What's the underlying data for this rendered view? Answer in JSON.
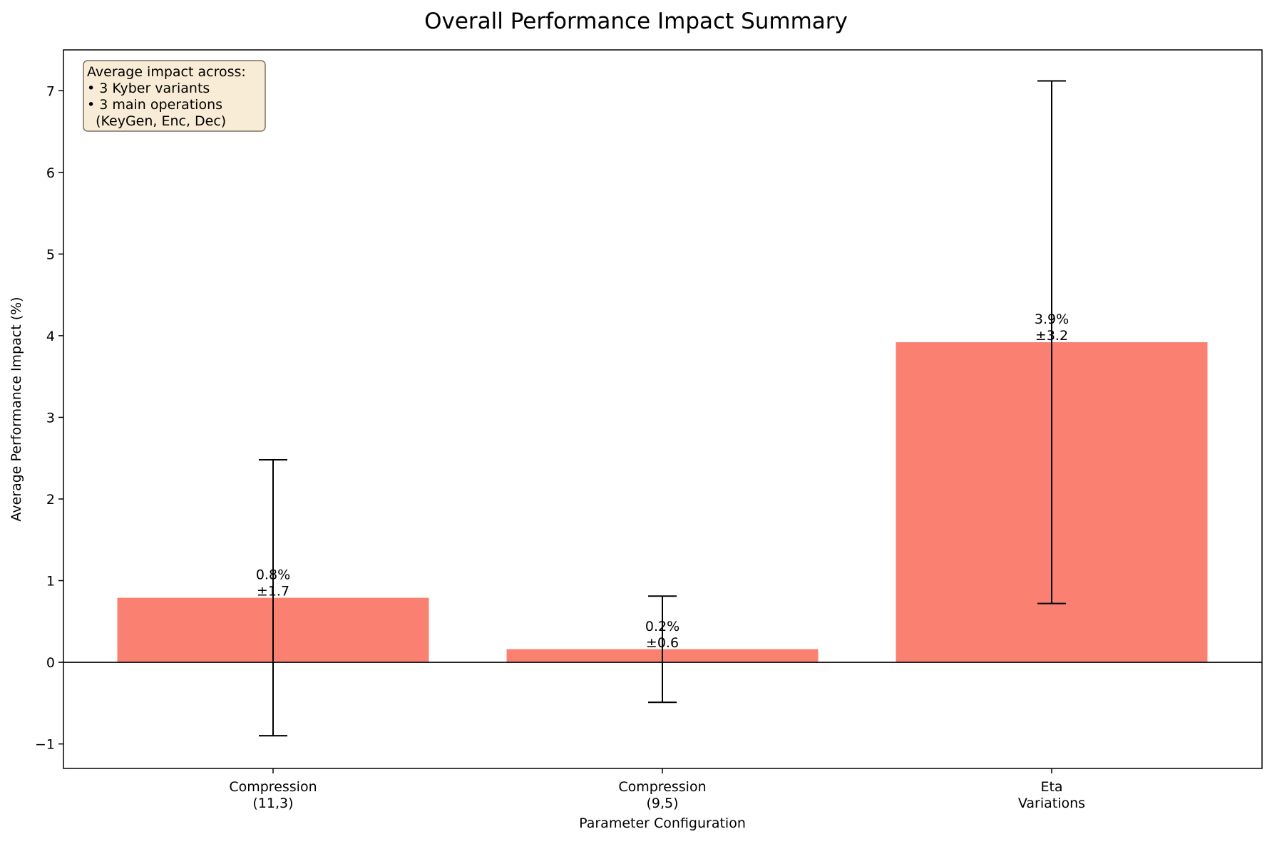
{
  "chart_data": {
    "type": "bar",
    "title": "Overall Performance Impact Summary",
    "xlabel": "Parameter Configuration",
    "ylabel": "Average Performance Impact (%)",
    "categories": [
      [
        "Compression",
        "(11,3)"
      ],
      [
        "Compression",
        "(9,5)"
      ],
      [
        "Eta",
        "Variations"
      ]
    ],
    "values": [
      0.79,
      0.16,
      3.92
    ],
    "errors": [
      1.69,
      0.65,
      3.2
    ],
    "bar_labels": [
      [
        "0.8%",
        "±1.7"
      ],
      [
        "0.2%",
        "±0.6"
      ],
      [
        "3.9%",
        "±3.2"
      ]
    ],
    "ylim": [
      -1.3,
      7.5
    ],
    "yticks": [
      -1,
      0,
      1,
      2,
      3,
      4,
      5,
      6,
      7
    ],
    "ytick_labels": [
      "−1",
      "0",
      "1",
      "2",
      "3",
      "4",
      "5",
      "6",
      "7"
    ],
    "grid": false,
    "zero_line": true,
    "bar_color": "#fa8072",
    "errorbar_color": "#000000",
    "annotation": {
      "lines": [
        "Average impact across:",
        "• 3 Kyber variants",
        "• 3 main operations",
        "  (KeyGen, Enc, Dec)"
      ],
      "position": "top-left",
      "facecolor": "#f9ecd6",
      "edgecolor": "#7a7062"
    }
  }
}
